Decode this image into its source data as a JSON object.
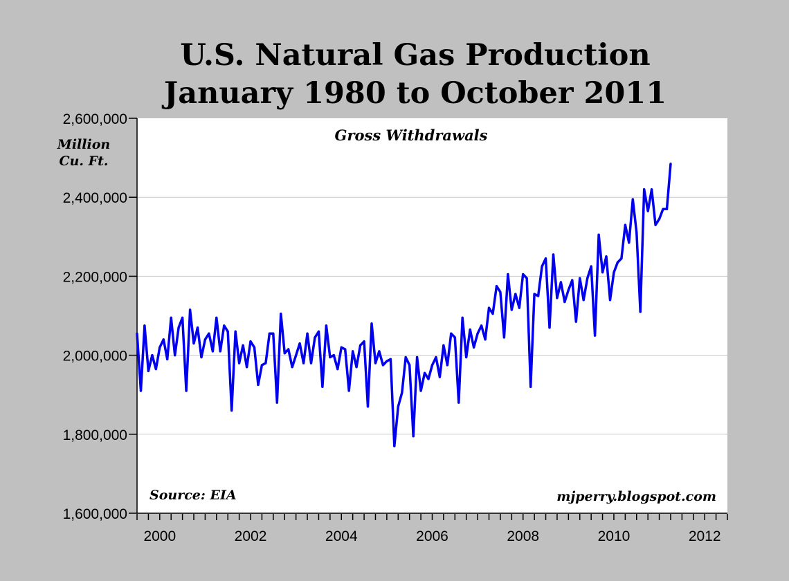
{
  "chart_data": {
    "type": "line",
    "title": [
      "U.S. Natural Gas Production",
      "January 1980 to October 2011"
    ],
    "subtitle": "Gross Withdrawals",
    "ylabel": [
      "Million",
      "Cu. Ft."
    ],
    "source": "Source: EIA",
    "credit": "mjperry.blogspot.com",
    "xlim": [
      2000,
      2013
    ],
    "ylim": [
      1600000,
      2600000
    ],
    "x_ticks": [
      2000,
      2002,
      2004,
      2006,
      2008,
      2010,
      2012
    ],
    "x_tick_labels": [
      "2000",
      "2002",
      "2004",
      "2006",
      "2008",
      "2010",
      "2012"
    ],
    "y_ticks": [
      1600000,
      1800000,
      2000000,
      2200000,
      2400000,
      2600000
    ],
    "y_tick_labels": [
      "1,600,000",
      "1,800,000",
      "2,000,000",
      "2,200,000",
      "2,400,000",
      "2,600,000"
    ],
    "grid": true,
    "line_color": "#0000ee",
    "series": [
      {
        "name": "Gross Withdrawals",
        "start": {
          "year": 2000,
          "month": 1
        },
        "values": [
          2055000,
          1910000,
          2075000,
          1960000,
          2000000,
          1965000,
          2020000,
          2040000,
          1990000,
          2095000,
          2000000,
          2070000,
          2095000,
          1910000,
          2115000,
          2030000,
          2070000,
          1995000,
          2040000,
          2055000,
          2010000,
          2095000,
          2010000,
          2075000,
          2060000,
          1860000,
          2060000,
          1980000,
          2025000,
          1970000,
          2035000,
          2020000,
          1925000,
          1975000,
          1980000,
          2055000,
          2055000,
          1880000,
          2105000,
          2005000,
          2015000,
          1970000,
          2000000,
          2030000,
          1980000,
          2055000,
          1980000,
          2045000,
          2060000,
          1920000,
          2075000,
          1995000,
          2000000,
          1965000,
          2020000,
          2015000,
          1910000,
          2010000,
          1970000,
          2025000,
          2035000,
          1870000,
          2080000,
          1980000,
          2010000,
          1975000,
          1985000,
          1990000,
          1770000,
          1870000,
          1905000,
          1995000,
          1975000,
          1795000,
          1995000,
          1910000,
          1955000,
          1940000,
          1975000,
          1995000,
          1945000,
          2025000,
          1975000,
          2055000,
          2045000,
          1880000,
          2095000,
          1995000,
          2065000,
          2020000,
          2055000,
          2075000,
          2040000,
          2120000,
          2105000,
          2175000,
          2160000,
          2045000,
          2205000,
          2115000,
          2155000,
          2120000,
          2205000,
          2195000,
          1920000,
          2155000,
          2150000,
          2225000,
          2245000,
          2070000,
          2255000,
          2145000,
          2185000,
          2135000,
          2165000,
          2190000,
          2085000,
          2195000,
          2140000,
          2195000,
          2225000,
          2050000,
          2305000,
          2210000,
          2250000,
          2140000,
          2210000,
          2235000,
          2245000,
          2330000,
          2285000,
          2395000,
          2310000,
          2110000,
          2420000,
          2365000,
          2420000,
          2330000,
          2345000,
          2370000,
          2370000,
          2485000
        ]
      }
    ]
  }
}
